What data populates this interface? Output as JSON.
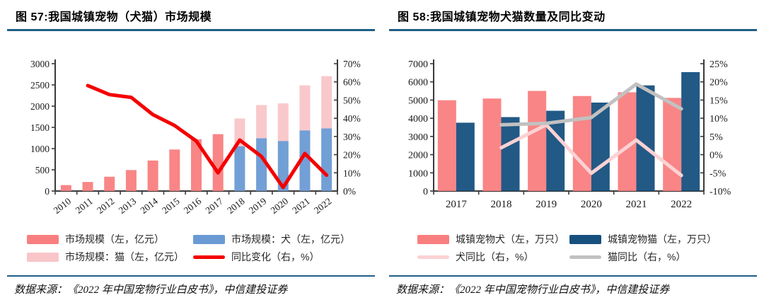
{
  "page": {
    "background": "#ffffff",
    "accent_color": "#1f5e86"
  },
  "panels": [
    {
      "title": "图 57:我国城镇宠物（犬猫）市场规模",
      "source": "数据来源：《2022 年中国宠物行业白皮书》，中信建投证券"
    },
    {
      "title": "图 58:我国城镇宠物犬猫数量及同比变动",
      "source": "数据来源：《2022 年中国宠物行业白皮书》，中信建投证券"
    }
  ],
  "chart_data": [
    {
      "type": "bar+line",
      "title": "我国城镇宠物（犬猫）市场规模",
      "categories": [
        "2010",
        "2011",
        "2012",
        "2013",
        "2014",
        "2015",
        "2016",
        "2017",
        "2018",
        "2019",
        "2020",
        "2021",
        "2022"
      ],
      "bar_mode": "stack",
      "x_tick_rotate": -38,
      "grid": false,
      "legend_position": "bottom",
      "left_axis": {
        "min": 0,
        "max": 3000,
        "step": 500,
        "suffix": ""
      },
      "right_axis": {
        "min": 0,
        "max": 70,
        "step": 10,
        "suffix": "%"
      },
      "series": [
        {
          "name": "市场规模（左，亿元）",
          "type": "bar",
          "axis": "left",
          "color": "#f97e7f",
          "values": [
            140,
            214,
            337,
            494,
            719,
            978,
            1220,
            1340,
            null,
            null,
            null,
            null,
            null
          ]
        },
        {
          "name": "市场规模：犬（左，亿元）",
          "type": "bar",
          "axis": "left",
          "color": "#6a9ad3",
          "values": [
            null,
            null,
            null,
            null,
            null,
            null,
            null,
            null,
            1056,
            1245,
            1180,
            1430,
            1475
          ]
        },
        {
          "name": "市场规模：猫（左，亿元）",
          "type": "bar",
          "axis": "left",
          "stack": true,
          "color": "#f9c5c8",
          "values": [
            null,
            null,
            null,
            null,
            null,
            null,
            null,
            null,
            652,
            780,
            885,
            1060,
            1231
          ]
        },
        {
          "name": "同比变化（右，%）",
          "type": "line",
          "axis": "right",
          "color": "#f40000",
          "values": [
            null,
            58,
            53,
            51.5,
            42,
            36,
            27.5,
            10,
            28,
            19,
            2,
            20.6,
            8.7
          ]
        }
      ]
    },
    {
      "type": "bar+line",
      "title": "我国城镇宠物犬猫数量及同比变动",
      "categories": [
        "2017",
        "2018",
        "2019",
        "2020",
        "2021",
        "2022"
      ],
      "bar_mode": "group",
      "x_tick_rotate": 0,
      "grid": false,
      "legend_position": "bottom",
      "left_axis": {
        "min": 0,
        "max": 7000,
        "step": 1000,
        "suffix": ""
      },
      "right_axis": {
        "min": -10,
        "max": 25,
        "step": 5,
        "suffix": "%"
      },
      "series": [
        {
          "name": "城镇宠物犬（左，万只）",
          "type": "bar",
          "axis": "left",
          "color": "#f97e7f",
          "values": [
            4990,
            5085,
            5503,
            5222,
            5429,
            5119
          ]
        },
        {
          "name": "城镇宠物猫（左，万只）",
          "type": "bar",
          "axis": "left",
          "color": "#16507e",
          "values": [
            3756,
            4064,
            4412,
            4862,
            5806,
            6536
          ]
        },
        {
          "name": "犬同比（右，%）",
          "type": "line",
          "axis": "right",
          "color": "#fbd2d3",
          "values": [
            null,
            1.9,
            8.2,
            -5.1,
            4.0,
            -5.7
          ]
        },
        {
          "name": "猫同比（右，%）",
          "type": "line",
          "axis": "right",
          "color": "#c2c1c1",
          "values": [
            null,
            8.2,
            8.6,
            10.2,
            19.4,
            12.6
          ]
        }
      ]
    }
  ]
}
